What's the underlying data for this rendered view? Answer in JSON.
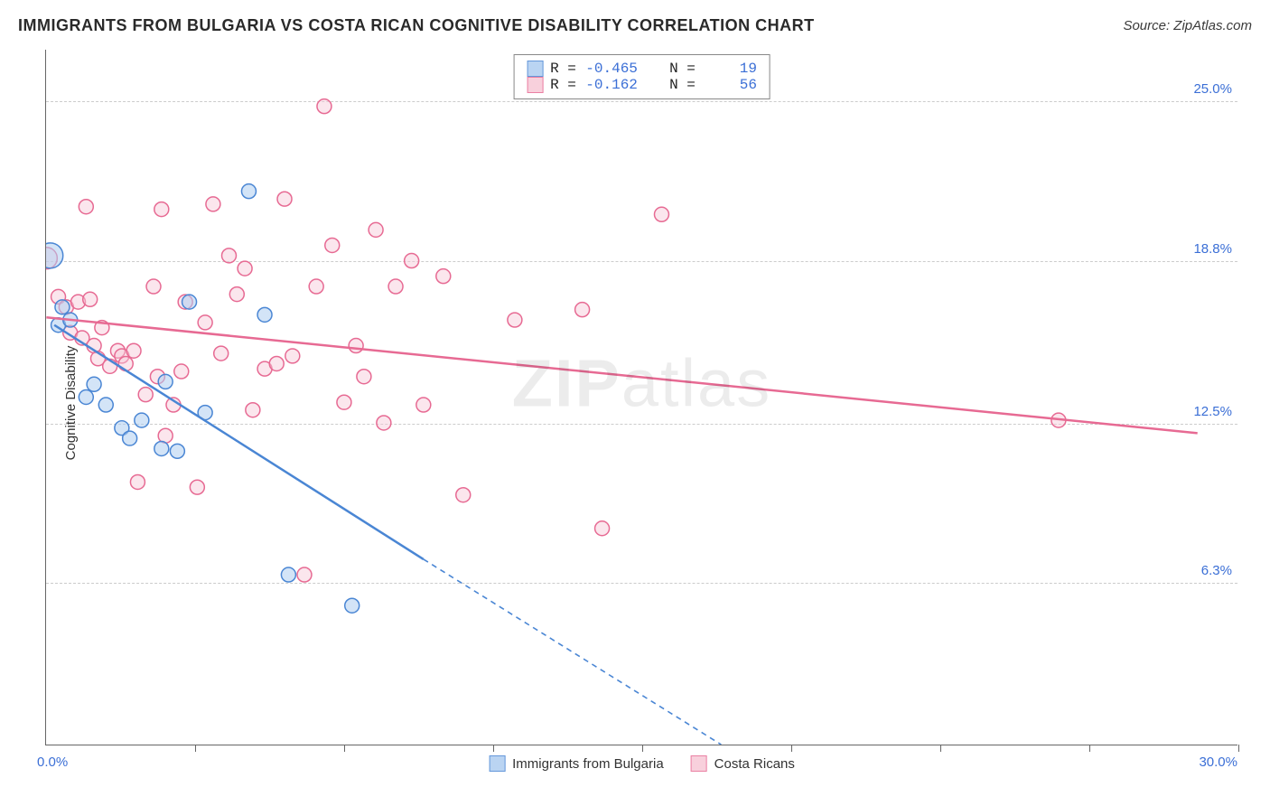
{
  "title": "IMMIGRANTS FROM BULGARIA VS COSTA RICAN COGNITIVE DISABILITY CORRELATION CHART",
  "source": "Source: ZipAtlas.com",
  "watermark_a": "ZIP",
  "watermark_b": "atlas",
  "ylabel": "Cognitive Disability",
  "chart": {
    "type": "scatter",
    "background_color": "#ffffff",
    "grid_color": "#cccccc",
    "axis_color": "#666666",
    "tick_label_color": "#3b6fd6",
    "xlim": [
      0.0,
      30.0
    ],
    "ylim": [
      0.0,
      27.0
    ],
    "y_ticks": [
      {
        "v": 6.3,
        "label": "6.3%"
      },
      {
        "v": 12.5,
        "label": "12.5%"
      },
      {
        "v": 18.8,
        "label": "18.8%"
      },
      {
        "v": 25.0,
        "label": "25.0%"
      }
    ],
    "x_tick_positions": [
      3.75,
      7.5,
      11.25,
      15.0,
      18.75,
      22.5,
      26.25,
      30.0
    ],
    "x_min_label": "0.0%",
    "x_max_label": "30.0%",
    "marker_radius": 8,
    "marker_stroke_width": 1.5,
    "line_width": 2.5,
    "series": [
      {
        "id": "bulgaria",
        "label": "Immigrants from Bulgaria",
        "color_stroke": "#4a86d4",
        "color_fill": "#aecdf0",
        "fill_opacity": 0.55,
        "R": "-0.465",
        "N": "19",
        "points": [
          [
            0.1,
            19.0,
            14
          ],
          [
            0.3,
            16.3
          ],
          [
            0.4,
            17.0
          ],
          [
            0.6,
            16.5
          ],
          [
            1.0,
            13.5
          ],
          [
            1.2,
            14.0
          ],
          [
            1.5,
            13.2
          ],
          [
            1.9,
            12.3
          ],
          [
            2.1,
            11.9
          ],
          [
            2.4,
            12.6
          ],
          [
            2.9,
            11.5
          ],
          [
            3.0,
            14.1
          ],
          [
            3.3,
            11.4
          ],
          [
            3.6,
            17.2
          ],
          [
            4.0,
            12.9
          ],
          [
            5.1,
            21.5
          ],
          [
            5.5,
            16.7
          ],
          [
            6.1,
            6.6
          ],
          [
            7.7,
            5.4
          ]
        ],
        "trend": {
          "solid": {
            "x1": 0.2,
            "y1": 16.3,
            "x2": 9.5,
            "y2": 7.2
          },
          "dashed": {
            "x1": 9.5,
            "y1": 7.2,
            "x2": 17.0,
            "y2": 0.0
          }
        }
      },
      {
        "id": "costarica",
        "label": "Costa Ricans",
        "color_stroke": "#e76a93",
        "color_fill": "#f7c8d7",
        "fill_opacity": 0.45,
        "R": "-0.162",
        "N": "56",
        "points": [
          [
            0.0,
            18.9,
            12
          ],
          [
            0.3,
            17.4
          ],
          [
            0.5,
            17.0
          ],
          [
            0.6,
            16.0
          ],
          [
            0.8,
            17.2
          ],
          [
            0.9,
            15.8
          ],
          [
            1.0,
            20.9
          ],
          [
            1.1,
            17.3
          ],
          [
            1.2,
            15.5
          ],
          [
            1.3,
            15.0
          ],
          [
            1.4,
            16.2
          ],
          [
            1.6,
            14.7
          ],
          [
            1.8,
            15.3
          ],
          [
            1.9,
            15.1
          ],
          [
            2.0,
            14.8
          ],
          [
            2.2,
            15.3
          ],
          [
            2.3,
            10.2
          ],
          [
            2.5,
            13.6
          ],
          [
            2.7,
            17.8
          ],
          [
            2.8,
            14.3
          ],
          [
            2.9,
            20.8
          ],
          [
            3.0,
            12.0
          ],
          [
            3.2,
            13.2
          ],
          [
            3.4,
            14.5
          ],
          [
            3.5,
            17.2
          ],
          [
            3.8,
            10.0
          ],
          [
            4.0,
            16.4
          ],
          [
            4.2,
            21.0
          ],
          [
            4.4,
            15.2
          ],
          [
            4.6,
            19.0
          ],
          [
            4.8,
            17.5
          ],
          [
            5.0,
            18.5
          ],
          [
            5.2,
            13.0
          ],
          [
            5.5,
            14.6
          ],
          [
            5.8,
            14.8
          ],
          [
            6.0,
            21.2
          ],
          [
            6.2,
            15.1
          ],
          [
            6.5,
            6.6
          ],
          [
            6.8,
            17.8
          ],
          [
            7.0,
            24.8
          ],
          [
            7.2,
            19.4
          ],
          [
            7.5,
            13.3
          ],
          [
            7.8,
            15.5
          ],
          [
            8.0,
            14.3
          ],
          [
            8.3,
            20.0
          ],
          [
            8.5,
            12.5
          ],
          [
            8.8,
            17.8
          ],
          [
            9.2,
            18.8
          ],
          [
            9.5,
            13.2
          ],
          [
            10.0,
            18.2
          ],
          [
            10.5,
            9.7
          ],
          [
            11.8,
            16.5
          ],
          [
            13.5,
            16.9
          ],
          [
            14.0,
            8.4
          ],
          [
            15.5,
            20.6
          ],
          [
            25.5,
            12.6
          ]
        ],
        "trend": {
          "solid": {
            "x1": 0.0,
            "y1": 16.6,
            "x2": 29.0,
            "y2": 12.1
          }
        }
      }
    ]
  }
}
